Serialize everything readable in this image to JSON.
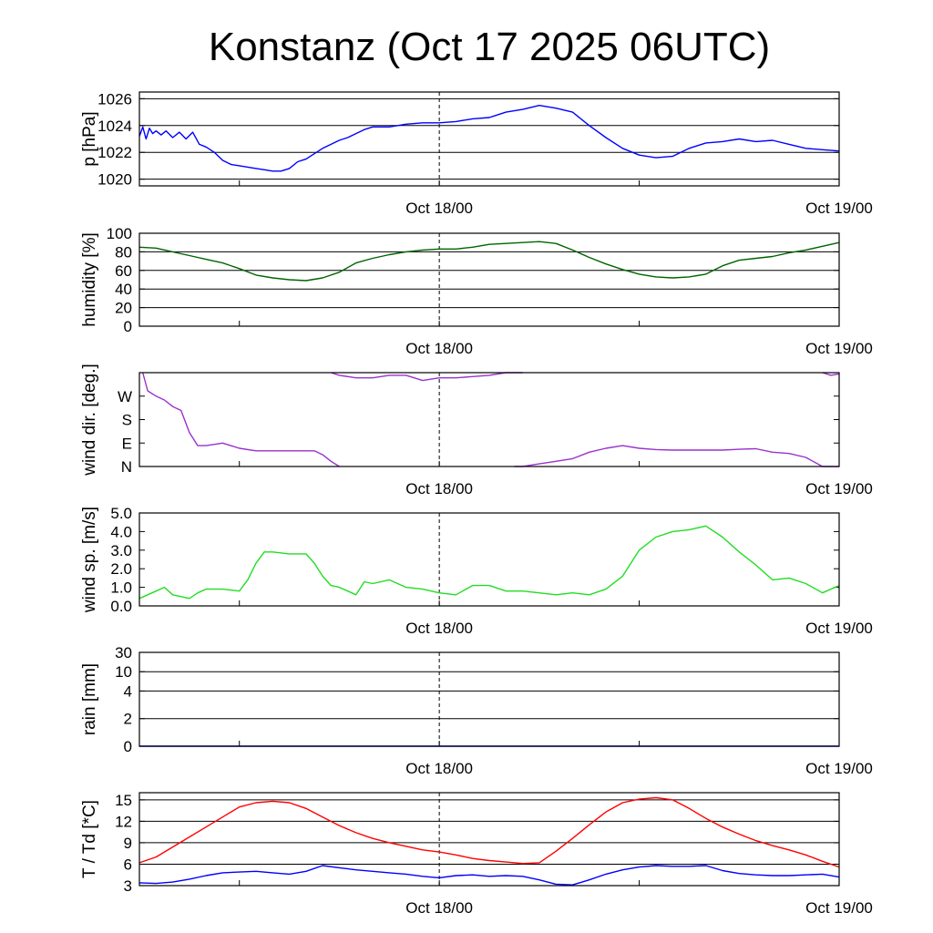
{
  "title": "Konstanz (Oct 17 2025 06UTC)",
  "chart_data": [
    {
      "type": "line",
      "ylabel": "p [hPa]",
      "ylim": [
        1019.5,
        1026.5
      ],
      "yticks": [
        1020,
        1022,
        1024,
        1026
      ],
      "ytick_labels": [
        "1020",
        "1022",
        "1024",
        "1026"
      ],
      "hgrid": [
        1020,
        1022,
        1024,
        1026
      ],
      "xlim": [
        0,
        42
      ],
      "xticks": [
        6,
        18,
        30
      ],
      "xtick_labels": [
        "Oct 18/00",
        "Oct 19/00"
      ],
      "xtick_label_pos": [
        18,
        42
      ],
      "midnight_marker": 18,
      "series": [
        {
          "color": "#0000ff",
          "x": [
            0,
            0.2,
            0.4,
            0.6,
            0.8,
            1,
            1.3,
            1.6,
            2,
            2.4,
            2.8,
            3.2,
            3.6,
            4,
            4.5,
            5,
            5.5,
            6,
            6.5,
            7,
            7.5,
            8,
            8.5,
            9,
            9.5,
            10,
            10.5,
            11,
            11.5,
            12,
            12.5,
            13,
            13.5,
            14,
            15,
            16,
            17,
            18,
            19,
            20,
            21,
            22,
            23,
            24,
            25,
            26,
            27,
            28,
            29,
            30,
            31,
            32,
            33,
            34,
            35,
            36,
            37,
            38,
            39,
            40,
            41,
            42
          ],
          "y": [
            1023.2,
            1023.9,
            1023.0,
            1023.8,
            1023.4,
            1023.6,
            1023.3,
            1023.6,
            1023.1,
            1023.5,
            1023.0,
            1023.5,
            1022.6,
            1022.4,
            1022.0,
            1021.4,
            1021.1,
            1021.0,
            1020.9,
            1020.8,
            1020.7,
            1020.6,
            1020.6,
            1020.8,
            1021.3,
            1021.5,
            1021.9,
            1022.3,
            1022.6,
            1022.9,
            1023.1,
            1023.4,
            1023.7,
            1023.9,
            1023.9,
            1024.1,
            1024.2,
            1024.2,
            1024.3,
            1024.5,
            1024.6,
            1025.0,
            1025.2,
            1025.5,
            1025.3,
            1025.0,
            1024.0,
            1023.1,
            1022.3,
            1021.8,
            1021.6,
            1021.7,
            1022.3,
            1022.7,
            1022.8,
            1023.0,
            1022.8,
            1022.9,
            1022.6,
            1022.3,
            1022.2,
            1022.1
          ]
        }
      ]
    },
    {
      "type": "line",
      "ylabel": "humidity [%]",
      "ylim": [
        0,
        100
      ],
      "yticks": [
        0,
        20,
        40,
        60,
        80,
        100
      ],
      "ytick_labels": [
        "0",
        "20",
        "40",
        "60",
        "80",
        "100"
      ],
      "hgrid": [
        20,
        40,
        60,
        80,
        100
      ],
      "xlim": [
        0,
        42
      ],
      "xticks": [
        6,
        18,
        30
      ],
      "xtick_labels": [
        "Oct 18/00",
        "Oct 19/00"
      ],
      "xtick_label_pos": [
        18,
        42
      ],
      "midnight_marker": 18,
      "series": [
        {
          "color": "#006400",
          "x": [
            0,
            1,
            2,
            3,
            4,
            5,
            6,
            7,
            8,
            9,
            10,
            11,
            12,
            13,
            14,
            15,
            16,
            17,
            18,
            19,
            20,
            21,
            22,
            23,
            24,
            25,
            26,
            27,
            28,
            29,
            30,
            31,
            32,
            33,
            34,
            35,
            36,
            37,
            38,
            39,
            40,
            41,
            42
          ],
          "y": [
            85,
            84,
            80,
            76,
            72,
            68,
            62,
            55,
            52,
            50,
            49,
            52,
            58,
            68,
            73,
            77,
            80,
            82,
            83,
            83,
            85,
            88,
            89,
            90,
            91,
            89,
            82,
            74,
            67,
            61,
            56,
            53,
            52,
            53,
            56,
            65,
            71,
            73,
            75,
            79,
            82,
            86,
            90
          ]
        }
      ]
    },
    {
      "type": "line",
      "ylabel": "wind dir. [deg.]",
      "ylim": [
        0,
        360
      ],
      "yticks": [
        0,
        90,
        180,
        270
      ],
      "ytick_labels": [
        "N",
        "E",
        "S",
        "W"
      ],
      "hgrid": [],
      "xlim": [
        0,
        42
      ],
      "xticks": [
        6,
        18,
        30
      ],
      "xtick_labels": [
        "Oct 18/00",
        "Oct 19/00"
      ],
      "xtick_label_pos": [
        18,
        42
      ],
      "midnight_marker": 18,
      "series": [
        {
          "color": "#9932cc",
          "x": [
            0.2,
            0.5,
            1,
            1.5,
            2,
            2.5,
            3,
            3.5,
            4,
            4.5,
            5,
            6,
            7,
            8,
            9,
            10,
            10.5,
            11,
            11.5,
            12
          ],
          "y": [
            360,
            290,
            270,
            255,
            230,
            215,
            130,
            80,
            80,
            85,
            90,
            70,
            60,
            60,
            60,
            60,
            60,
            45,
            20,
            0
          ]
        },
        {
          "color": "#9932cc",
          "x": [
            11.5,
            12,
            13,
            14,
            15,
            16,
            17,
            18,
            19,
            20,
            21,
            22,
            23
          ],
          "y": [
            360,
            350,
            340,
            340,
            350,
            350,
            330,
            340,
            340,
            345,
            350,
            360,
            360
          ]
        },
        {
          "color": "#9932cc",
          "x": [
            22.5,
            23,
            24,
            25,
            26,
            27,
            28,
            29,
            30,
            31,
            32,
            33,
            34,
            35,
            36,
            37,
            38,
            39,
            40,
            41,
            42
          ],
          "y": [
            0,
            0,
            10,
            20,
            30,
            55,
            70,
            80,
            70,
            65,
            63,
            63,
            63,
            63,
            66,
            68,
            55,
            50,
            35,
            0,
            0
          ]
        },
        {
          "color": "#9932cc",
          "x": [
            41,
            41.5,
            42
          ],
          "y": [
            360,
            350,
            355
          ]
        }
      ]
    },
    {
      "type": "line",
      "ylabel": "wind sp. [m/s]",
      "ylim": [
        0,
        5
      ],
      "yticks": [
        0,
        1,
        2,
        3,
        4,
        5
      ],
      "ytick_labels": [
        "0.0",
        "1.0",
        "2.0",
        "3.0",
        "4.0",
        "5.0"
      ],
      "hgrid": [],
      "xlim": [
        0,
        42
      ],
      "xticks": [
        6,
        18,
        30
      ],
      "xtick_labels": [
        "Oct 18/00",
        "Oct 19/00"
      ],
      "xtick_label_pos": [
        18,
        42
      ],
      "midnight_marker": 18,
      "series": [
        {
          "color": "#22dd22",
          "x": [
            0,
            0.5,
            1,
            1.5,
            2,
            2.5,
            3,
            3.5,
            4,
            5,
            6,
            6.5,
            7,
            7.5,
            8,
            9,
            10,
            10.5,
            11,
            11.5,
            12,
            12.5,
            13,
            13.5,
            14,
            15,
            16,
            17,
            18,
            19,
            20,
            21,
            22,
            23,
            24,
            25,
            26,
            27,
            28,
            29,
            30,
            31,
            32,
            33,
            34,
            35,
            36,
            37,
            38,
            39,
            40,
            41,
            42
          ],
          "y": [
            0.4,
            0.6,
            0.8,
            1.0,
            0.6,
            0.5,
            0.4,
            0.7,
            0.9,
            0.9,
            0.8,
            1.4,
            2.3,
            2.9,
            2.9,
            2.8,
            2.8,
            2.3,
            1.6,
            1.1,
            1.0,
            0.8,
            0.6,
            1.3,
            1.2,
            1.4,
            1.0,
            0.9,
            0.7,
            0.6,
            1.1,
            1.1,
            0.8,
            0.8,
            0.7,
            0.6,
            0.7,
            0.6,
            0.9,
            1.6,
            3.0,
            3.7,
            4.0,
            4.1,
            4.3,
            3.7,
            2.9,
            2.2,
            1.4,
            1.5,
            1.2,
            0.7,
            1.1
          ]
        }
      ]
    },
    {
      "type": "line",
      "ylabel": "rain [mm]",
      "ylim": [
        0,
        30
      ],
      "yticks": [
        0,
        2,
        4,
        10,
        30
      ],
      "ytick_labels": [
        "0",
        "2",
        "4",
        "10",
        "30"
      ],
      "ytick_fracs": [
        0,
        0.294,
        0.588,
        0.794,
        1.0
      ],
      "hgrid": [
        2,
        4,
        10,
        30
      ],
      "xlim": [
        0,
        42
      ],
      "xticks": [
        6,
        18,
        30
      ],
      "xtick_labels": [
        "Oct 18/00",
        "Oct 19/00"
      ],
      "xtick_label_pos": [
        18,
        42
      ],
      "midnight_marker": 18,
      "series": [
        {
          "color": "#0000ff",
          "x": [
            0,
            42
          ],
          "y": [
            0,
            0
          ]
        }
      ]
    },
    {
      "type": "line",
      "ylabel": "T / Td [*C]",
      "ylim": [
        3,
        16
      ],
      "yticks": [
        3,
        6,
        9,
        12,
        15
      ],
      "ytick_labels": [
        "3",
        "6",
        "9",
        "12",
        "15"
      ],
      "hgrid": [
        6,
        9,
        12,
        15
      ],
      "xlim": [
        0,
        42
      ],
      "xticks": [
        6,
        18,
        30
      ],
      "xtick_labels": [
        "Oct 18/00",
        "Oct 19/00"
      ],
      "xtick_label_pos": [
        18,
        42
      ],
      "midnight_marker": 18,
      "series": [
        {
          "color": "#ff0000",
          "x": [
            0,
            1,
            2,
            3,
            4,
            5,
            6,
            7,
            8,
            9,
            10,
            11,
            12,
            13,
            14,
            15,
            16,
            17,
            18,
            19,
            20,
            21,
            22,
            23,
            24,
            25,
            26,
            27,
            28,
            29,
            30,
            31,
            32,
            33,
            34,
            35,
            36,
            37,
            38,
            39,
            40,
            41,
            42
          ],
          "y": [
            6.2,
            7.0,
            8.4,
            9.8,
            11.2,
            12.6,
            14.0,
            14.6,
            14.8,
            14.6,
            13.8,
            12.6,
            11.4,
            10.4,
            9.6,
            9.0,
            8.5,
            8.0,
            7.7,
            7.3,
            6.8,
            6.5,
            6.3,
            6.1,
            6.2,
            7.8,
            9.6,
            11.5,
            13.3,
            14.6,
            15.1,
            15.3,
            15.0,
            13.8,
            12.4,
            11.2,
            10.2,
            9.3,
            8.6,
            8.0,
            7.3,
            6.4,
            5.6
          ]
        },
        {
          "color": "#0000ff",
          "x": [
            0,
            1,
            2,
            3,
            4,
            5,
            6,
            7,
            8,
            9,
            10,
            11,
            12,
            13,
            14,
            15,
            16,
            17,
            18,
            19,
            20,
            21,
            22,
            23,
            24,
            25,
            26,
            27,
            28,
            29,
            30,
            31,
            32,
            33,
            34,
            35,
            36,
            37,
            38,
            39,
            40,
            41,
            42
          ],
          "y": [
            3.4,
            3.3,
            3.5,
            3.9,
            4.4,
            4.8,
            4.9,
            5.0,
            4.8,
            4.6,
            5.0,
            5.8,
            5.5,
            5.2,
            5.0,
            4.8,
            4.6,
            4.3,
            4.1,
            4.4,
            4.5,
            4.3,
            4.4,
            4.3,
            3.8,
            3.2,
            3.1,
            3.8,
            4.6,
            5.2,
            5.6,
            5.8,
            5.7,
            5.7,
            5.8,
            5.1,
            4.7,
            4.5,
            4.4,
            4.4,
            4.5,
            4.6,
            4.2
          ]
        }
      ]
    }
  ]
}
